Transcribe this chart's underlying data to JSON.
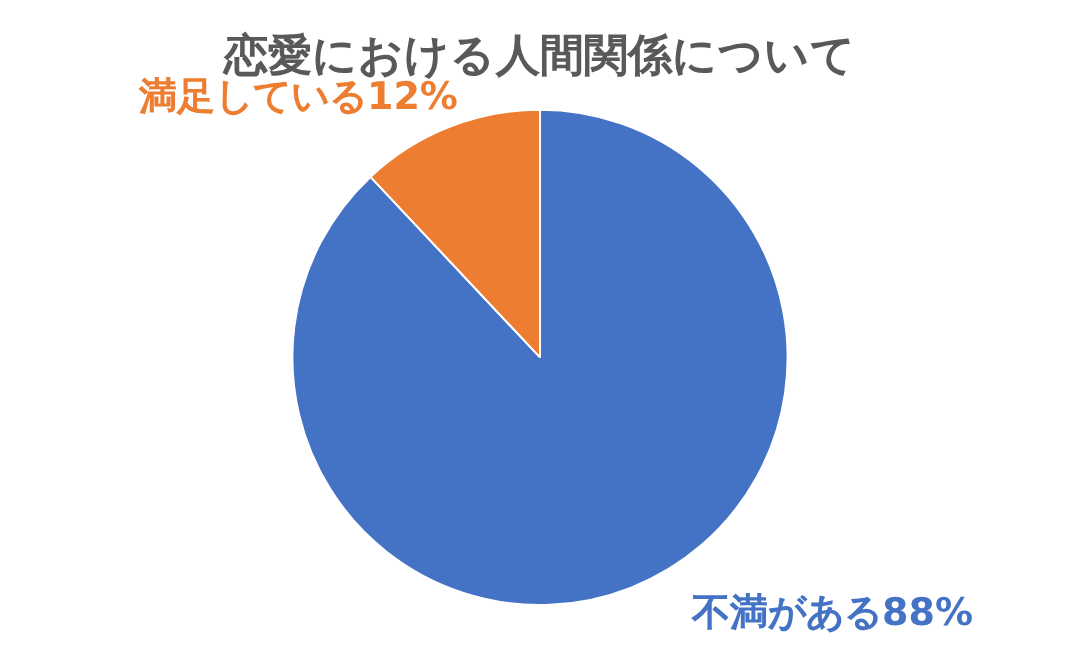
{
  "chart_data": {
    "type": "pie",
    "title": "恋愛における人間関係について",
    "categories": [
      "不満がある",
      "満足している"
    ],
    "values": [
      88,
      12
    ],
    "value_labels": [
      "88%",
      "12%"
    ],
    "colors": [
      "#4472c4",
      "#ed7d31"
    ],
    "legend": false
  }
}
